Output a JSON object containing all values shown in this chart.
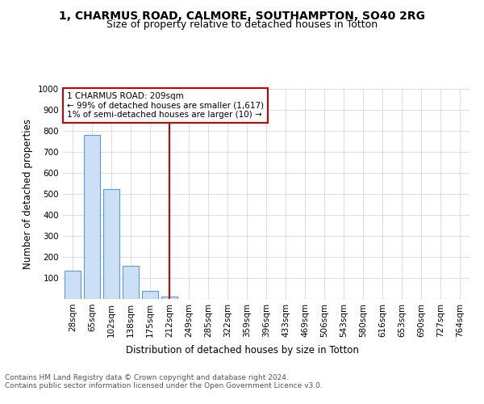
{
  "title": "1, CHARMUS ROAD, CALMORE, SOUTHAMPTON, SO40 2RG",
  "subtitle": "Size of property relative to detached houses in Totton",
  "xlabel": "Distribution of detached houses by size in Totton",
  "ylabel": "Number of detached properties",
  "bar_labels": [
    "28sqm",
    "65sqm",
    "102sqm",
    "138sqm",
    "175sqm",
    "212sqm",
    "249sqm",
    "285sqm",
    "322sqm",
    "359sqm",
    "396sqm",
    "433sqm",
    "469sqm",
    "506sqm",
    "543sqm",
    "580sqm",
    "616sqm",
    "653sqm",
    "690sqm",
    "727sqm",
    "764sqm"
  ],
  "bar_values": [
    135,
    780,
    525,
    157,
    37,
    10,
    0,
    0,
    0,
    0,
    0,
    0,
    0,
    0,
    0,
    0,
    0,
    0,
    0,
    0,
    0
  ],
  "bar_color": "#cce0f5",
  "bar_edge_color": "#5b9bd5",
  "highlight_index": 5,
  "highlight_color": "#cc0000",
  "annotation_line1": "1 CHARMUS ROAD: 209sqm",
  "annotation_line2": "← 99% of detached houses are smaller (1,617)",
  "annotation_line3": "1% of semi-detached houses are larger (10) →",
  "annotation_box_color": "#cc0000",
  "ylim": [
    0,
    1000
  ],
  "yticks": [
    0,
    100,
    200,
    300,
    400,
    500,
    600,
    700,
    800,
    900,
    1000
  ],
  "footer_text": "Contains HM Land Registry data © Crown copyright and database right 2024.\nContains public sector information licensed under the Open Government Licence v3.0.",
  "bg_color": "#ffffff",
  "grid_color": "#d0d8e8",
  "title_fontsize": 10,
  "subtitle_fontsize": 9,
  "xlabel_fontsize": 8.5,
  "ylabel_fontsize": 8.5,
  "tick_fontsize": 7.5,
  "annotation_fontsize": 7.5,
  "footer_fontsize": 6.5
}
